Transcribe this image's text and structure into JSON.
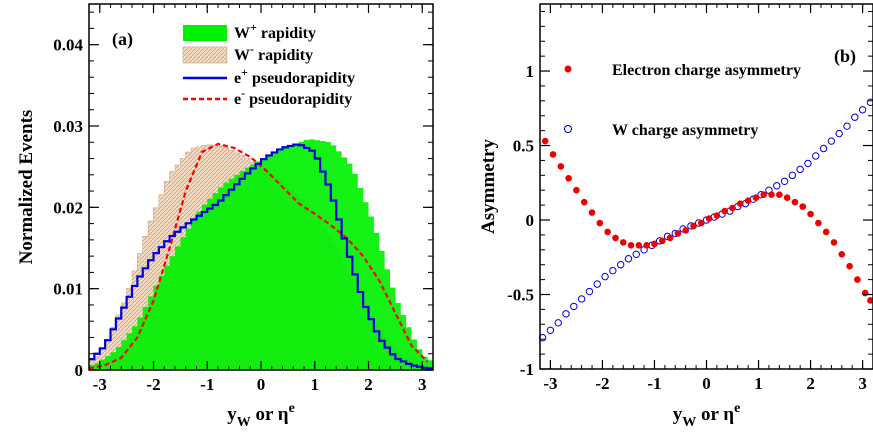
{
  "chart_data": [
    {
      "type": "area",
      "panel_label": "(a)",
      "xlabel": "y_W or η^e",
      "ylabel": "Normalized Events",
      "xlim": [
        -3.2,
        3.2
      ],
      "ylim": [
        0,
        0.045
      ],
      "x_ticks": [
        -3,
        -2,
        -1,
        0,
        1,
        2,
        3
      ],
      "y_ticks": [
        0,
        0.01,
        0.02,
        0.03,
        0.04
      ],
      "y_tick_labels": [
        "0",
        "0.01",
        "0.02",
        "0.03",
        "0.04"
      ],
      "grid": false,
      "legend_position": "top-right",
      "series": [
        {
          "name": "W+ rapidity",
          "legend_main": "W",
          "legend_sup": "+",
          "legend_rest": " rapidity",
          "style": "filled-histogram",
          "color": "#00f000",
          "x": [
            -3.1,
            -2.7,
            -2.3,
            -1.9,
            -1.5,
            -1.1,
            -0.7,
            -0.3,
            0.1,
            0.5,
            0.9,
            1.3,
            1.7,
            2.1,
            2.5,
            2.9,
            3.1
          ],
          "y": [
            0.0006,
            0.0024,
            0.0058,
            0.011,
            0.0158,
            0.02,
            0.0228,
            0.0247,
            0.0262,
            0.0275,
            0.0284,
            0.028,
            0.025,
            0.018,
            0.009,
            0.003,
            0.0012
          ]
        },
        {
          "name": "W- rapidity",
          "legend_main": "W",
          "legend_sup": "-",
          "legend_rest": " rapidity",
          "style": "hatched-histogram",
          "color": "#f0d8c0",
          "x": [
            -3.1,
            -2.9,
            -2.5,
            -2.1,
            -1.7,
            -1.3,
            -1.0,
            -0.7,
            -0.3,
            0.1,
            0.5,
            0.9,
            1.3,
            1.7,
            2.1,
            2.5,
            2.9,
            3.1
          ],
          "y": [
            0.0012,
            0.003,
            0.009,
            0.0175,
            0.024,
            0.0272,
            0.0277,
            0.0275,
            0.0262,
            0.0245,
            0.0225,
            0.02,
            0.016,
            0.011,
            0.006,
            0.0025,
            0.0008,
            0.0004
          ]
        },
        {
          "name": "e+ pseudorapidity",
          "legend_main": "e",
          "legend_sup": "+",
          "legend_rest": " pseudorapidity",
          "style": "step-line",
          "color": "#0000e0",
          "x": [
            -3.2,
            -2.9,
            -2.6,
            -2.3,
            -2.0,
            -1.7,
            -1.4,
            -1.1,
            -0.8,
            -0.5,
            -0.2,
            0.1,
            0.4,
            0.7,
            1.0,
            1.3,
            1.6,
            1.9,
            2.2,
            2.5,
            2.8,
            3.1
          ],
          "y": [
            0.001,
            0.003,
            0.007,
            0.011,
            0.014,
            0.0162,
            0.0178,
            0.0192,
            0.0205,
            0.0225,
            0.0245,
            0.0262,
            0.0273,
            0.0278,
            0.0268,
            0.022,
            0.015,
            0.0085,
            0.004,
            0.0015,
            0.0006,
            0.0002
          ]
        },
        {
          "name": "e- pseudorapidity",
          "legend_main": "e",
          "legend_sup": "-",
          "legend_rest": " pseudorapidity",
          "style": "dashed-line",
          "color": "#ff0000",
          "x": [
            -3.2,
            -2.9,
            -2.6,
            -2.3,
            -2.0,
            -1.7,
            -1.4,
            -1.1,
            -0.8,
            -0.5,
            -0.2,
            0.1,
            0.4,
            0.7,
            1.0,
            1.3,
            1.6,
            1.9,
            2.2,
            2.5,
            2.8,
            3.1
          ],
          "y": [
            0.0002,
            0.0006,
            0.0015,
            0.004,
            0.0085,
            0.015,
            0.022,
            0.0268,
            0.0278,
            0.0273,
            0.0262,
            0.0245,
            0.0225,
            0.0205,
            0.0192,
            0.0178,
            0.0162,
            0.014,
            0.011,
            0.007,
            0.003,
            0.001
          ]
        }
      ]
    },
    {
      "type": "scatter",
      "panel_label": "(b)",
      "xlabel": "y_W or η^e",
      "ylabel": "Asymmetry",
      "xlim": [
        -3.2,
        3.2
      ],
      "ylim": [
        -1,
        1.45
      ],
      "x_ticks": [
        -3,
        -2,
        -1,
        0,
        1,
        2,
        3
      ],
      "y_ticks": [
        -1,
        -0.5,
        0,
        0.5,
        1
      ],
      "y_tick_labels": [
        "-1",
        "-0.5",
        "0",
        "0.5",
        "1"
      ],
      "grid": false,
      "legend_position": "top-center",
      "series": [
        {
          "name": "Electron charge asymmetry",
          "marker": "filled-circle",
          "color": "#ee0000",
          "x": [
            -3.1,
            -2.95,
            -2.8,
            -2.65,
            -2.5,
            -2.35,
            -2.2,
            -2.05,
            -1.9,
            -1.75,
            -1.6,
            -1.45,
            -1.3,
            -1.15,
            -1.0,
            -0.85,
            -0.7,
            -0.55,
            -0.4,
            -0.25,
            -0.1,
            0.05,
            0.2,
            0.35,
            0.5,
            0.65,
            0.8,
            0.95,
            1.1,
            1.25,
            1.4,
            1.55,
            1.7,
            1.85,
            2.0,
            2.15,
            2.3,
            2.45,
            2.6,
            2.75,
            2.9,
            3.05,
            3.15
          ],
          "y": [
            0.53,
            0.44,
            0.36,
            0.28,
            0.2,
            0.12,
            0.05,
            -0.02,
            -0.08,
            -0.12,
            -0.15,
            -0.17,
            -0.17,
            -0.17,
            -0.16,
            -0.14,
            -0.12,
            -0.09,
            -0.07,
            -0.04,
            -0.02,
            0.01,
            0.03,
            0.06,
            0.08,
            0.11,
            0.13,
            0.15,
            0.17,
            0.17,
            0.17,
            0.15,
            0.12,
            0.09,
            0.04,
            -0.02,
            -0.08,
            -0.15,
            -0.23,
            -0.31,
            -0.4,
            -0.49,
            -0.54
          ]
        },
        {
          "name": "W charge asymmetry",
          "marker": "open-circle",
          "color": "#0000dd",
          "x": [
            -3.15,
            -3.0,
            -2.85,
            -2.7,
            -2.55,
            -2.4,
            -2.25,
            -2.1,
            -1.95,
            -1.8,
            -1.65,
            -1.5,
            -1.35,
            -1.2,
            -1.05,
            -0.9,
            -0.75,
            -0.6,
            -0.45,
            -0.3,
            -0.15,
            0.0,
            0.15,
            0.3,
            0.45,
            0.6,
            0.75,
            0.9,
            1.05,
            1.2,
            1.35,
            1.5,
            1.65,
            1.8,
            1.95,
            2.1,
            2.25,
            2.4,
            2.55,
            2.7,
            2.85,
            3.0,
            3.15
          ],
          "y": [
            -0.79,
            -0.74,
            -0.69,
            -0.63,
            -0.58,
            -0.53,
            -0.48,
            -0.43,
            -0.38,
            -0.34,
            -0.3,
            -0.26,
            -0.23,
            -0.2,
            -0.17,
            -0.14,
            -0.11,
            -0.09,
            -0.06,
            -0.04,
            -0.02,
            0.0,
            0.02,
            0.04,
            0.06,
            0.09,
            0.11,
            0.14,
            0.17,
            0.2,
            0.23,
            0.26,
            0.3,
            0.34,
            0.38,
            0.43,
            0.48,
            0.53,
            0.58,
            0.63,
            0.69,
            0.74,
            0.79
          ]
        }
      ]
    }
  ]
}
